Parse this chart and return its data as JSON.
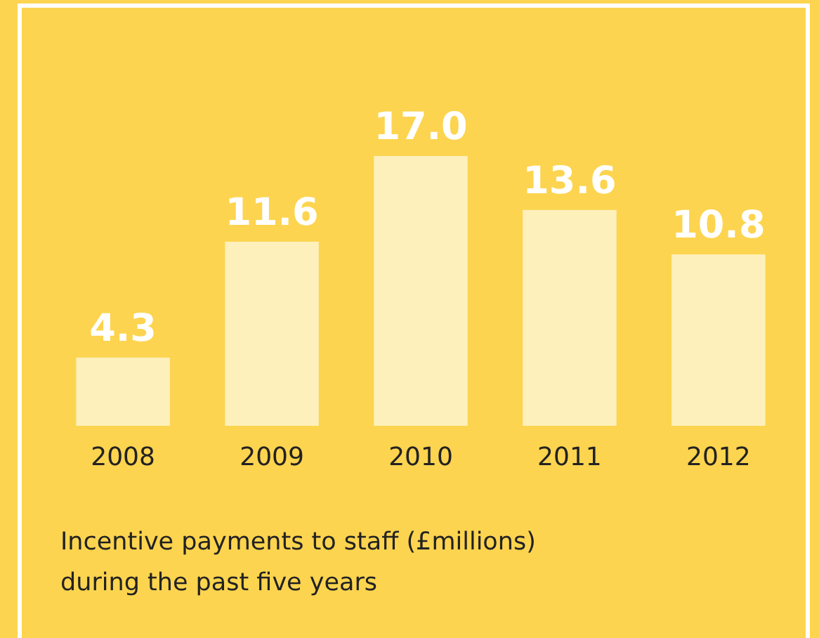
{
  "chart_data": {
    "type": "bar",
    "categories": [
      "2008",
      "2009",
      "2010",
      "2011",
      "2012"
    ],
    "values": [
      4.3,
      11.6,
      17.0,
      13.6,
      10.8
    ],
    "value_labels": [
      "4.3",
      "11.6",
      "17.0",
      "13.6",
      "10.8"
    ],
    "color": "#fdf0bb",
    "annotations": [
      "Incentive payments to staff (£millions) during the past five years"
    ]
  }
}
